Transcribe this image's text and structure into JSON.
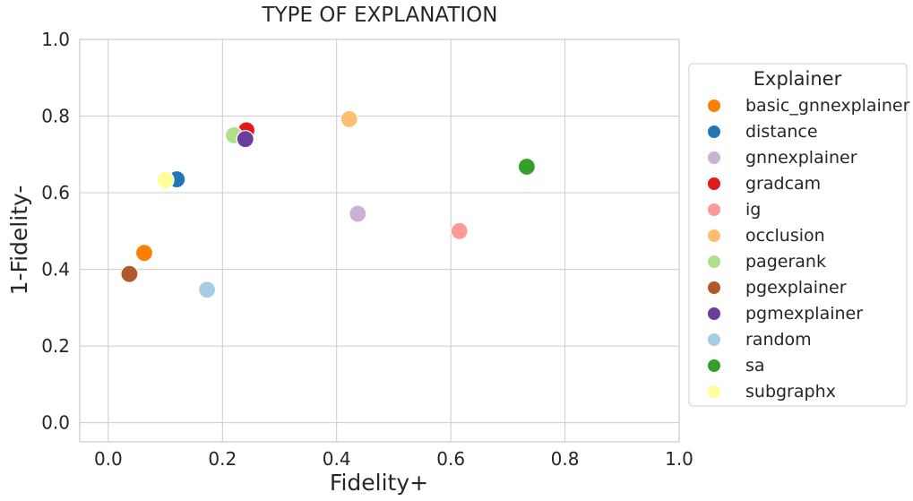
{
  "chart_data": {
    "type": "scatter",
    "title": "TYPE OF EXPLANATION",
    "xlabel": "Fidelity+",
    "ylabel": "1-Fidelity-",
    "xlim": [
      -0.05,
      1.0
    ],
    "ylim": [
      -0.05,
      1.0
    ],
    "xticks": [
      "0.0",
      "0.2",
      "0.4",
      "0.6",
      "0.8",
      "1.0"
    ],
    "yticks": [
      "0.0",
      "0.2",
      "0.4",
      "0.6",
      "0.8",
      "1.0"
    ],
    "grid": true,
    "legend": {
      "title": "Explainer",
      "placement": "right-outside"
    },
    "series": [
      {
        "name": "basic_gnnexplainer",
        "color": "#ff7f00",
        "x": 0.063,
        "y": 0.443
      },
      {
        "name": "distance",
        "color": "#1f78b4",
        "x": 0.12,
        "y": 0.635
      },
      {
        "name": "gnnexplainer",
        "color": "#cab2d6",
        "x": 0.437,
        "y": 0.545
      },
      {
        "name": "gradcam",
        "color": "#e31a1c",
        "x": 0.242,
        "y": 0.763
      },
      {
        "name": "ig",
        "color": "#fb9a99",
        "x": 0.615,
        "y": 0.5
      },
      {
        "name": "occlusion",
        "color": "#fdbf6f",
        "x": 0.422,
        "y": 0.792
      },
      {
        "name": "pagerank",
        "color": "#b2df8a",
        "x": 0.22,
        "y": 0.75
      },
      {
        "name": "pgexplainer",
        "color": "#b15928",
        "x": 0.037,
        "y": 0.388
      },
      {
        "name": "pgmexplainer",
        "color": "#6a3d9a",
        "x": 0.24,
        "y": 0.74
      },
      {
        "name": "random",
        "color": "#a6cee3",
        "x": 0.173,
        "y": 0.347
      },
      {
        "name": "sa",
        "color": "#33a02c",
        "x": 0.733,
        "y": 0.668
      },
      {
        "name": "subgraphx",
        "color": "#ffff99",
        "x": 0.1,
        "y": 0.633
      }
    ]
  }
}
